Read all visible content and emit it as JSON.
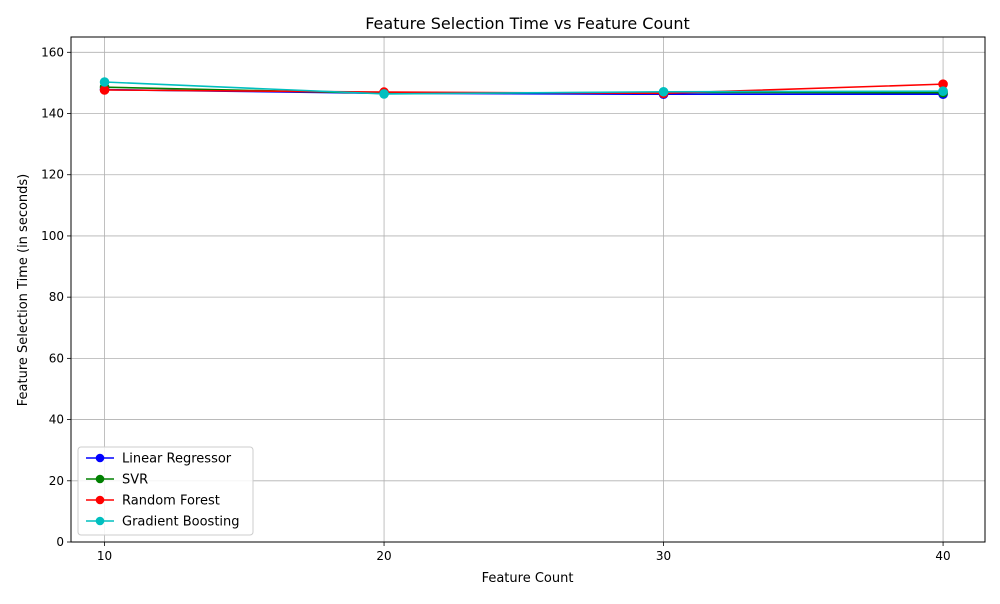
{
  "chart_data": {
    "type": "line",
    "title": "Feature Selection Time vs Feature Count",
    "xlabel": "Feature Count",
    "ylabel": "Feature Selection Time (in seconds)",
    "x": [
      10,
      20,
      30,
      40
    ],
    "xlim": [
      8.8,
      41.5
    ],
    "ylim": [
      0,
      165
    ],
    "yticks": [
      0,
      20,
      40,
      60,
      80,
      100,
      120,
      140,
      160
    ],
    "grid": true,
    "legend_position": "lower-left",
    "series": [
      {
        "name": "Linear Regressor",
        "color": "#0000ff",
        "values": [
          147.8,
          146.6,
          146.3,
          146.3
        ]
      },
      {
        "name": "SVR",
        "color": "#008000",
        "values": [
          148.6,
          146.6,
          146.9,
          146.8
        ]
      },
      {
        "name": "Random Forest",
        "color": "#ff0000",
        "values": [
          147.7,
          147.0,
          146.6,
          149.6
        ]
      },
      {
        "name": "Gradient Boosting",
        "color": "#00bfbf",
        "values": [
          150.3,
          146.4,
          147.1,
          147.3
        ]
      }
    ]
  }
}
